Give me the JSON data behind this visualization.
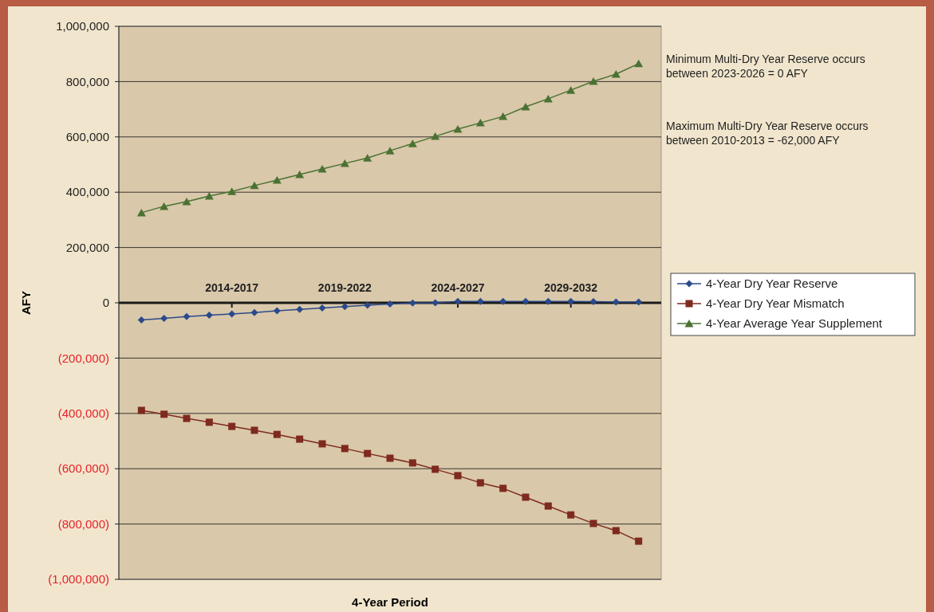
{
  "chart_data": {
    "type": "line",
    "xlabel": "4-Year Period",
    "ylabel": "AFY",
    "categories": [
      null,
      null,
      null,
      null,
      "2014-2017",
      null,
      null,
      null,
      null,
      "2019-2022",
      null,
      null,
      null,
      null,
      "2024-2027",
      null,
      null,
      null,
      null,
      "2029-2032",
      null,
      null,
      null
    ],
    "series": [
      {
        "name": "4-Year Dry Year Reserve",
        "color": "#2b4a8b",
        "marker": "diamond",
        "values": [
          -62000,
          -56000,
          -50000,
          -45000,
          -40000,
          -35000,
          -29000,
          -24000,
          -19000,
          -14000,
          -9000,
          -4000,
          -1000,
          0,
          5000,
          5000,
          5000,
          5000,
          5000,
          5000,
          4000,
          3000,
          3000
        ]
      },
      {
        "name": "4-Year Dry Year Mismatch",
        "color": "#7f2a1e",
        "marker": "square",
        "values": [
          -389000,
          -403000,
          -418000,
          -432000,
          -447000,
          -461000,
          -476000,
          -493000,
          -510000,
          -527000,
          -545000,
          -562000,
          -579000,
          -602000,
          -625000,
          -651000,
          -671000,
          -703000,
          -735000,
          -767000,
          -798000,
          -824000,
          -862000
        ]
      },
      {
        "name": "4-Year Average Year Supplement",
        "color": "#4a7232",
        "marker": "triangle",
        "values": [
          326000,
          349000,
          366000,
          386000,
          403000,
          424000,
          444000,
          464000,
          484000,
          504000,
          524000,
          550000,
          576000,
          602000,
          628000,
          651000,
          674000,
          709000,
          738000,
          769000,
          801000,
          827000,
          865000
        ]
      }
    ],
    "ylim": [
      -1000000,
      1000000
    ],
    "yticks": [
      {
        "value": -1000000,
        "label": "(1,000,000)"
      },
      {
        "value": -800000,
        "label": "(800,000)"
      },
      {
        "value": -600000,
        "label": "(600,000)"
      },
      {
        "value": -400000,
        "label": "(400,000)"
      },
      {
        "value": -200000,
        "label": "(200,000)"
      },
      {
        "value": 0,
        "label": "0"
      },
      {
        "value": 200000,
        "label": "200,000"
      },
      {
        "value": 400000,
        "label": "400,000"
      },
      {
        "value": 600000,
        "label": "600,000"
      },
      {
        "value": 800000,
        "label": "800,000"
      },
      {
        "value": 1000000,
        "label": "1,000,000"
      }
    ],
    "grid": "y",
    "legend": "right",
    "line_style": "solid",
    "annotations": [
      "Minimum Multi-Dry Year Reserve occurs between 2023-2026 = 0 AFY",
      "Maximum Multi-Dry Year Reserve occurs between 2010-2013 = -62,000 AFY"
    ]
  }
}
